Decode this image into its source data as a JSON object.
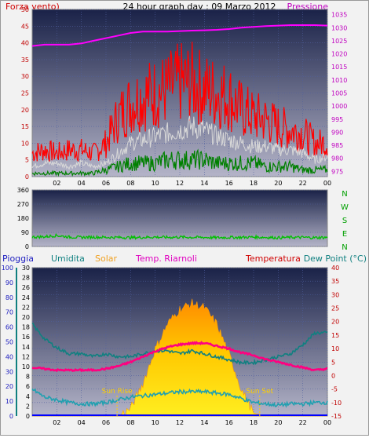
{
  "header": {
    "left_label": "Forza vento)",
    "title": "24 hour graph day : 09 Marzo 2012",
    "right_label": "Pressione"
  },
  "wind_dir_labels": [
    "N",
    "W",
    "S",
    "E",
    "N"
  ],
  "legend": {
    "pioggia": "Pioggia",
    "umidita": "Umidita",
    "solar": "Solar",
    "riarnoli": "Temp. Riarnoli",
    "temperatura": "Temperatura",
    "dewpoint": "Dew Point (°C)"
  },
  "sun": {
    "rise": "Sun Rise",
    "set": "Sun Set"
  },
  "colors": {
    "plot_top": "#1a2248",
    "plot_bottom": "#b0b0c8",
    "wind_max": "#ff0000",
    "wind_avg": "#d8d8d8",
    "wind_min": "#008000",
    "pressure": "#ff00ff",
    "direction": "#00c000",
    "solar": "#ffd000",
    "temperature": "#ff0080",
    "dewpoint": "#20a0b0",
    "humidity": "#108080",
    "rain": "#0000ff"
  },
  "chart_data": [
    {
      "type": "line",
      "title": "24 hour graph day : 09 Marzo 2012",
      "x_ticks": [
        "02",
        "04",
        "06",
        "08",
        "10",
        "12",
        "14",
        "16",
        "18",
        "20",
        "22",
        "00"
      ],
      "y_left": {
        "label": "Forza vento)",
        "ticks": [
          0,
          5,
          10,
          15,
          20,
          25,
          30,
          35,
          40,
          45,
          50
        ],
        "ylim": [
          0,
          50
        ]
      },
      "y_right": {
        "label": "Pressione",
        "ticks": [
          975,
          980,
          985,
          990,
          995,
          1000,
          1005,
          1010,
          1015,
          1020,
          1025,
          1030,
          1035
        ],
        "ylim": [
          973,
          1037
        ]
      },
      "hours": [
        0,
        1,
        2,
        3,
        4,
        5,
        6,
        7,
        8,
        9,
        10,
        11,
        12,
        13,
        14,
        15,
        16,
        17,
        18,
        19,
        20,
        21,
        22,
        23,
        24
      ],
      "series": [
        {
          "name": "wind max",
          "axis": "left",
          "values": [
            7,
            8,
            7,
            8,
            8,
            7,
            10,
            18,
            22,
            24,
            25,
            26,
            28,
            28,
            26,
            25,
            24,
            20,
            18,
            17,
            15,
            14,
            13,
            10,
            10
          ]
        },
        {
          "name": "wind avg",
          "axis": "left",
          "values": [
            3,
            4,
            4,
            3,
            4,
            3,
            4,
            7,
            10,
            11,
            12,
            13,
            14,
            15,
            14,
            12,
            11,
            10,
            9,
            9,
            8,
            8,
            7,
            5,
            6
          ]
        },
        {
          "name": "wind min",
          "axis": "left",
          "values": [
            1,
            1,
            1,
            1,
            1,
            1,
            2,
            3,
            4,
            4,
            4,
            5,
            5,
            5,
            5,
            4,
            4,
            4,
            4,
            3,
            3,
            3,
            2,
            2,
            2
          ]
        },
        {
          "name": "Pressione",
          "axis": "right",
          "values": [
            1023,
            1023.5,
            1023.5,
            1023.5,
            1024,
            1025,
            1026,
            1027,
            1028,
            1028.5,
            1028.5,
            1028.5,
            1028.7,
            1028.9,
            1029,
            1029.2,
            1029.5,
            1030,
            1030.3,
            1030.6,
            1030.8,
            1031,
            1031,
            1031,
            1030.8
          ]
        }
      ]
    },
    {
      "type": "scatter",
      "y_ticks": [
        0,
        90,
        180,
        270,
        360
      ],
      "ylim": [
        0,
        360
      ],
      "series": [
        {
          "name": "wind direction",
          "values": [
            60,
            62,
            70,
            60,
            58,
            60,
            58,
            58,
            56,
            58,
            60,
            58,
            60,
            58,
            58,
            56,
            58,
            58,
            60,
            58,
            56,
            58,
            58,
            56,
            58
          ]
        }
      ]
    },
    {
      "type": "line",
      "x_ticks": [
        "02",
        "04",
        "06",
        "08",
        "10",
        "12",
        "14",
        "16",
        "18",
        "20",
        "22",
        "00"
      ],
      "y_pioggia": {
        "label": "Pioggia",
        "ticks": [
          0,
          10,
          20,
          30,
          40,
          50,
          60,
          70,
          80,
          90,
          100
        ],
        "ylim": [
          0,
          100
        ]
      },
      "y_umidita": {
        "label": "Umidita",
        "ticks": [
          0,
          2,
          4,
          6,
          8,
          10,
          12,
          14,
          16,
          18,
          20,
          22,
          24,
          26,
          28,
          30
        ],
        "ylim": [
          0,
          30
        ]
      },
      "y_right": {
        "label": "Dew Point (°C)",
        "ticks": [
          -15,
          -10,
          -5,
          0,
          5,
          10,
          15,
          20,
          25,
          30,
          35,
          40
        ],
        "ylim": [
          -15,
          40
        ]
      },
      "hours": [
        0,
        1,
        2,
        3,
        4,
        5,
        6,
        7,
        8,
        9,
        10,
        11,
        12,
        13,
        14,
        15,
        16,
        17,
        18,
        19,
        20,
        21,
        22,
        23,
        24
      ],
      "series": [
        {
          "name": "Solar",
          "values": [
            0,
            0,
            0,
            0,
            0,
            0,
            0,
            0,
            5,
            22,
            45,
            62,
            72,
            76,
            73,
            62,
            42,
            18,
            2,
            0,
            0,
            0,
            0,
            0,
            0
          ]
        },
        {
          "name": "Temperatura",
          "values": [
            3,
            2.5,
            2,
            2,
            2,
            2,
            2.5,
            3.5,
            5,
            7,
            9,
            10.5,
            11.5,
            12,
            12,
            11,
            10,
            8.5,
            7.5,
            6,
            5,
            4,
            3,
            2,
            2.5
          ]
        },
        {
          "name": "Umidita",
          "values": [
            62,
            52,
            46,
            42,
            42,
            40,
            42,
            40,
            40,
            42,
            44,
            44,
            42,
            44,
            42,
            40,
            38,
            36,
            36,
            38,
            40,
            42,
            48,
            56,
            56
          ]
        },
        {
          "name": "Dew Point",
          "values": [
            -5,
            -8,
            -9,
            -10,
            -10.5,
            -10.5,
            -10,
            -9,
            -8,
            -7.5,
            -7,
            -6.5,
            -6,
            -6,
            -6,
            -6.5,
            -7,
            -8.5,
            -10,
            -10.5,
            -11,
            -10.5,
            -10.5,
            -10,
            -10
          ]
        },
        {
          "name": "Pioggia",
          "values": [
            0,
            0,
            0,
            0,
            0,
            0,
            0,
            0,
            0,
            0,
            0,
            0,
            0,
            0,
            0,
            0,
            0,
            0,
            0,
            0,
            0,
            0,
            0,
            0,
            0
          ]
        }
      ],
      "annotations": [
        {
          "text": "Sun Rise",
          "hour": 6.9
        },
        {
          "text": "Sun Set",
          "hour": 18.5
        }
      ]
    }
  ]
}
